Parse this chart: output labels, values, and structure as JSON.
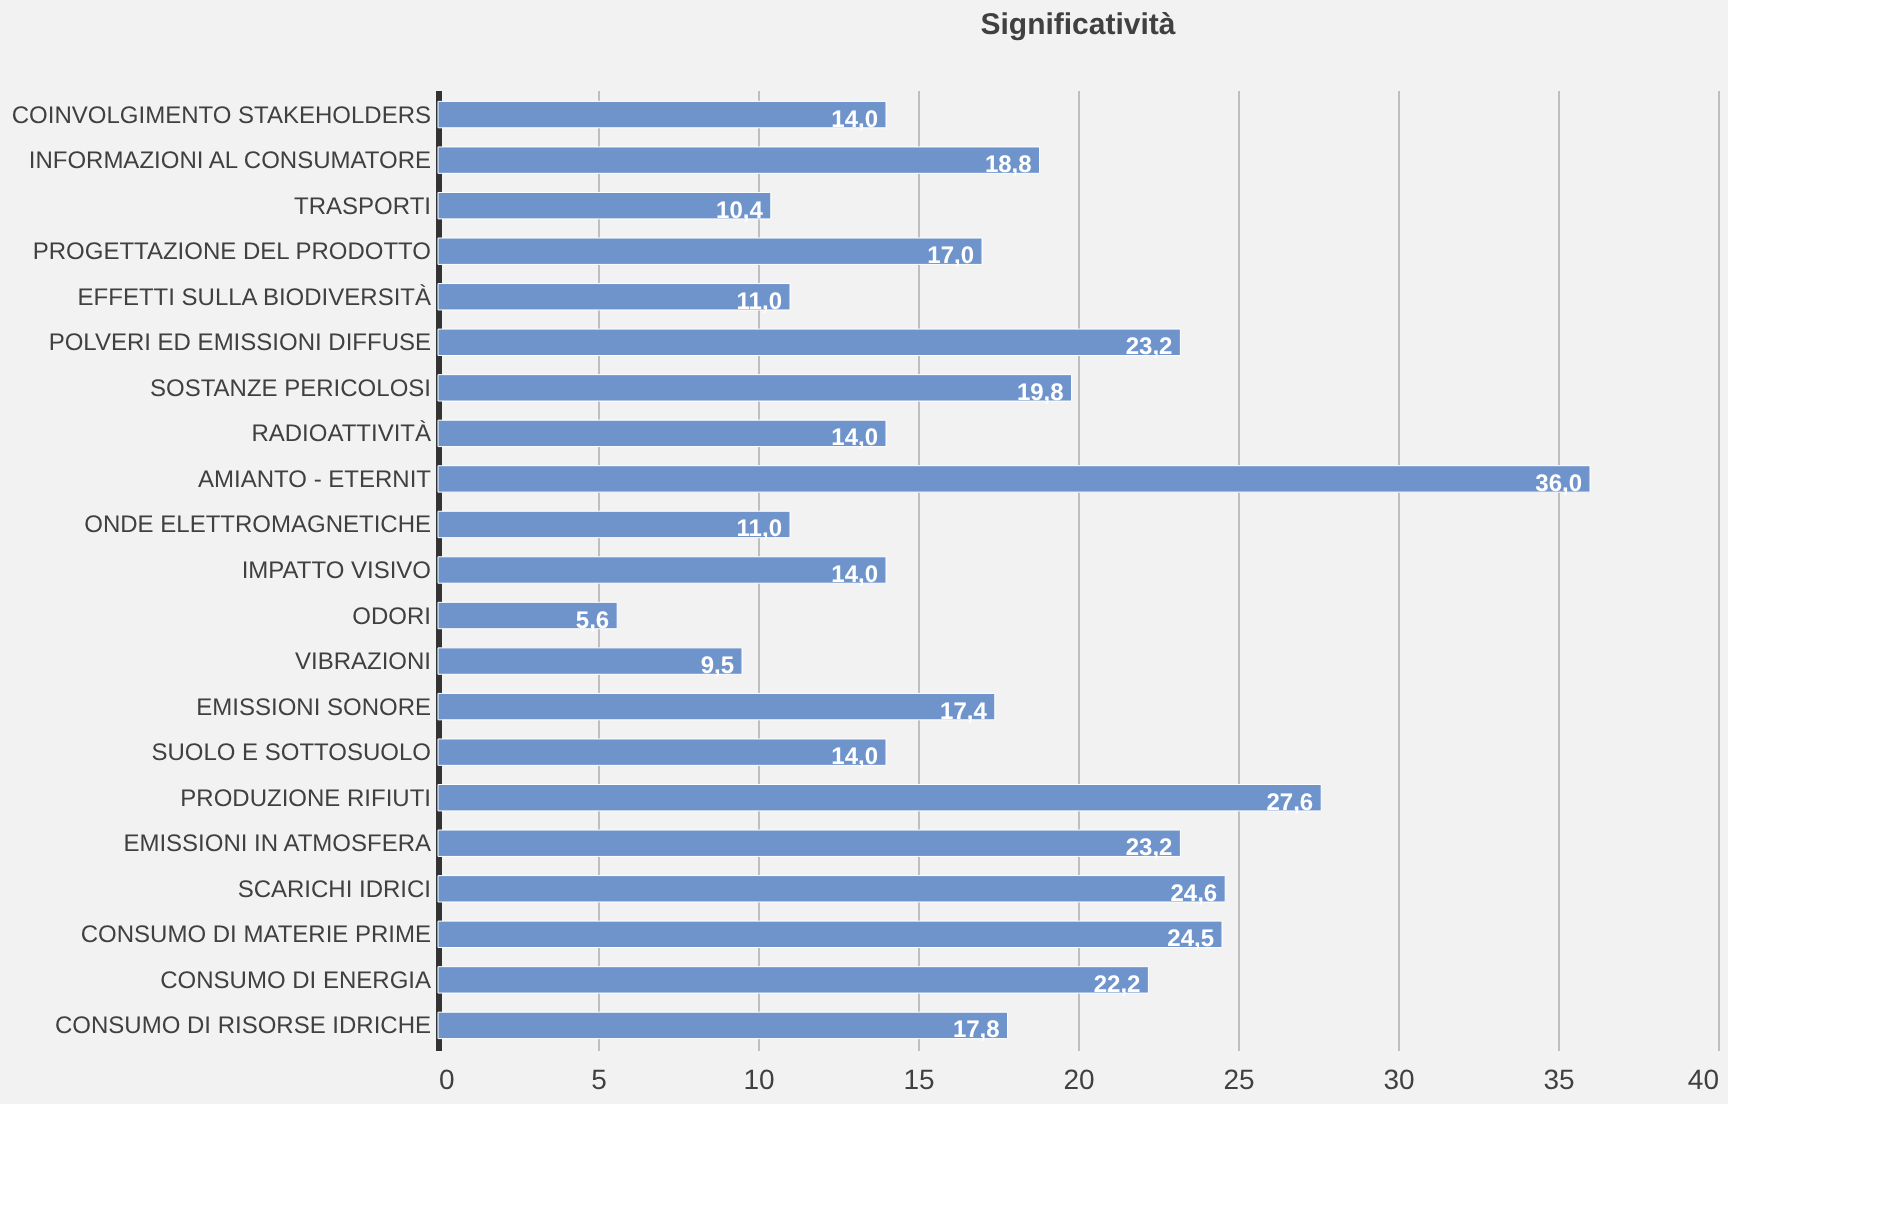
{
  "chart_data": {
    "type": "bar",
    "orientation": "horizontal",
    "title": "Significatività",
    "categories": [
      "COINVOLGIMENTO STAKEHOLDERS",
      "INFORMAZIONI AL CONSUMATORE",
      "TRASPORTI",
      "PROGETTAZIONE DEL PRODOTTO",
      "EFFETTI SULLA BIODIVERSITÀ",
      "POLVERI ED EMISSIONI DIFFUSE",
      "SOSTANZE PERICOLOSI",
      "RADIOATTIVITÀ",
      "AMIANTO - ETERNIT",
      "ONDE ELETTROMAGNETICHE",
      "IMPATTO VISIVO",
      "ODORI",
      "VIBRAZIONI",
      "EMISSIONI SONORE",
      "SUOLO E SOTTOSUOLO",
      "PRODUZIONE RIFIUTI",
      "EMISSIONI IN ATMOSFERA",
      "SCARICHI IDRICI",
      "CONSUMO DI MATERIE PRIME",
      "CONSUMO DI ENERGIA",
      "CONSUMO DI RISORSE IDRICHE"
    ],
    "values": [
      14.0,
      18.8,
      10.4,
      17.0,
      11.0,
      23.2,
      19.8,
      14.0,
      36.0,
      11.0,
      14.0,
      5.6,
      9.5,
      17.4,
      14.0,
      27.6,
      23.2,
      24.6,
      24.5,
      22.2,
      17.8
    ],
    "value_labels": [
      "14,0",
      "18,8",
      "10,4",
      "17,0",
      "11,0",
      "23,2",
      "19,8",
      "14,0",
      "36,0",
      "11,0",
      "14,0",
      "5,6",
      "9,5",
      "17,4",
      "14,0",
      "27,6",
      "23,2",
      "24,6",
      "24,5",
      "22,2",
      "17,8"
    ],
    "color": "#6f94cc",
    "xlim": [
      0,
      40
    ],
    "xticks": [
      0,
      5,
      10,
      15,
      20,
      25,
      30,
      35,
      40
    ],
    "grid": "x"
  }
}
